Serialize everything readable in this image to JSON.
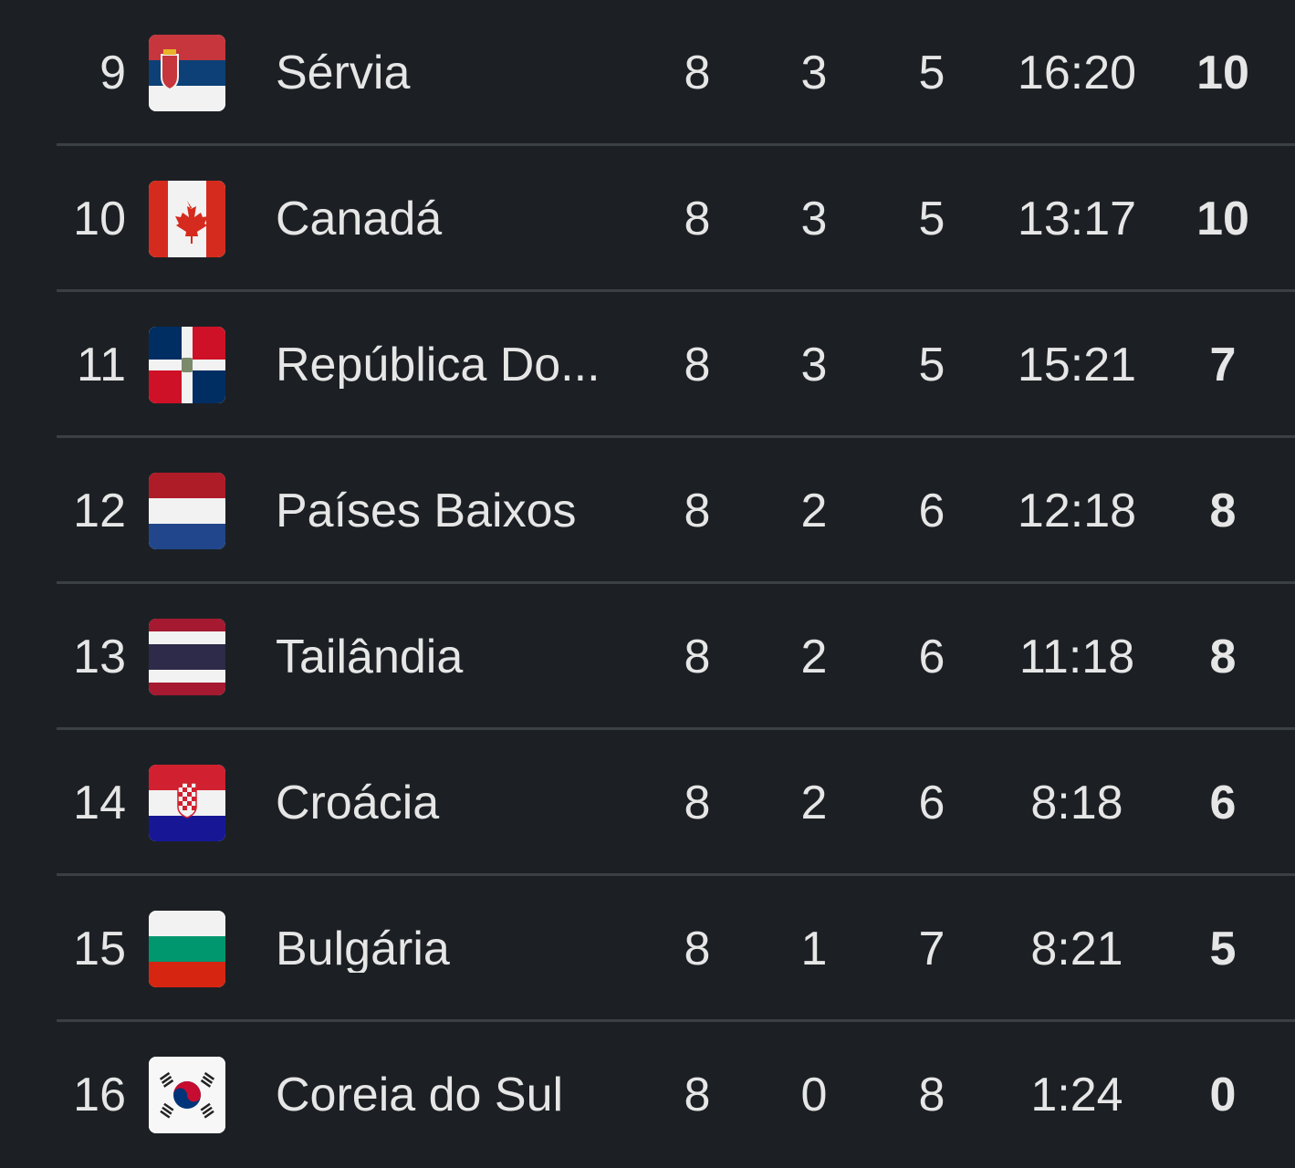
{
  "standings": {
    "rows": [
      {
        "position": "9",
        "team": "Sérvia",
        "flag": "serbia-flag-icon",
        "played": "8",
        "wins": "3",
        "losses": "5",
        "sets": "16:20",
        "points": "10"
      },
      {
        "position": "10",
        "team": "Canadá",
        "flag": "canada-flag-icon",
        "played": "8",
        "wins": "3",
        "losses": "5",
        "sets": "13:17",
        "points": "10"
      },
      {
        "position": "11",
        "team": "República Do...",
        "flag": "dominican-republic-flag-icon",
        "played": "8",
        "wins": "3",
        "losses": "5",
        "sets": "15:21",
        "points": "7"
      },
      {
        "position": "12",
        "team": "Países Baixos",
        "flag": "netherlands-flag-icon",
        "played": "8",
        "wins": "2",
        "losses": "6",
        "sets": "12:18",
        "points": "8"
      },
      {
        "position": "13",
        "team": "Tailândia",
        "flag": "thailand-flag-icon",
        "played": "8",
        "wins": "2",
        "losses": "6",
        "sets": "11:18",
        "points": "8"
      },
      {
        "position": "14",
        "team": "Croácia",
        "flag": "croatia-flag-icon",
        "played": "8",
        "wins": "2",
        "losses": "6",
        "sets": "8:18",
        "points": "6"
      },
      {
        "position": "15",
        "team": "Bulgária",
        "flag": "bulgaria-flag-icon",
        "played": "8",
        "wins": "1",
        "losses": "7",
        "sets": "8:21",
        "points": "5"
      },
      {
        "position": "16",
        "team": "Coreia do Sul",
        "flag": "south-korea-flag-icon",
        "played": "8",
        "wins": "0",
        "losses": "8",
        "sets": "1:24",
        "points": "0"
      }
    ]
  },
  "colors": {
    "background": "#1c2024",
    "divider": "#3b4045",
    "text": "#e6e6e6"
  }
}
